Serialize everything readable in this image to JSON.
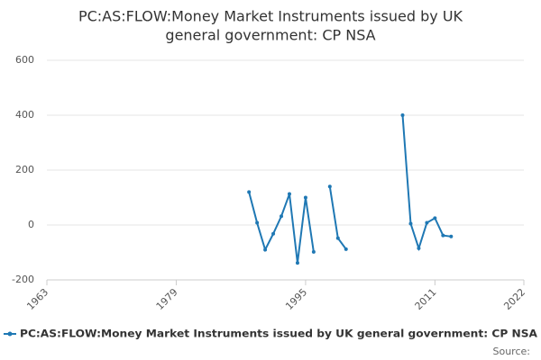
{
  "chart_data": {
    "type": "line",
    "title": [
      "PC:AS:FLOW:Money Market Instruments issued by UK",
      "general government: CP NSA"
    ],
    "x": [
      1988,
      1989,
      1990,
      1991,
      1992,
      1993,
      1994,
      1995,
      1996,
      1997,
      1998,
      1999,
      2000,
      2001,
      2002,
      2003,
      2004,
      2005,
      2006,
      2007,
      2008,
      2009,
      2010,
      2011,
      2012,
      2013
    ],
    "series": [
      {
        "name": "PC:AS:FLOW:Money Market Instruments issued by UK general government: CP NSA",
        "color": "#1f78b4",
        "values": [
          120,
          8,
          -90,
          -32,
          32,
          113,
          -138,
          100,
          -98,
          null,
          140,
          -48,
          -88,
          null,
          null,
          null,
          null,
          null,
          null,
          400,
          5,
          -85,
          8,
          25,
          -38,
          -42
        ]
      }
    ],
    "xlim": [
      1963,
      2022
    ],
    "xticks": [
      1963,
      1979,
      1995,
      2011,
      2022
    ],
    "ylim": [
      -200,
      600
    ],
    "yticks": [
      -200,
      0,
      200,
      400,
      600
    ],
    "grid": true,
    "legend": "bottom",
    "source": "Source:"
  }
}
